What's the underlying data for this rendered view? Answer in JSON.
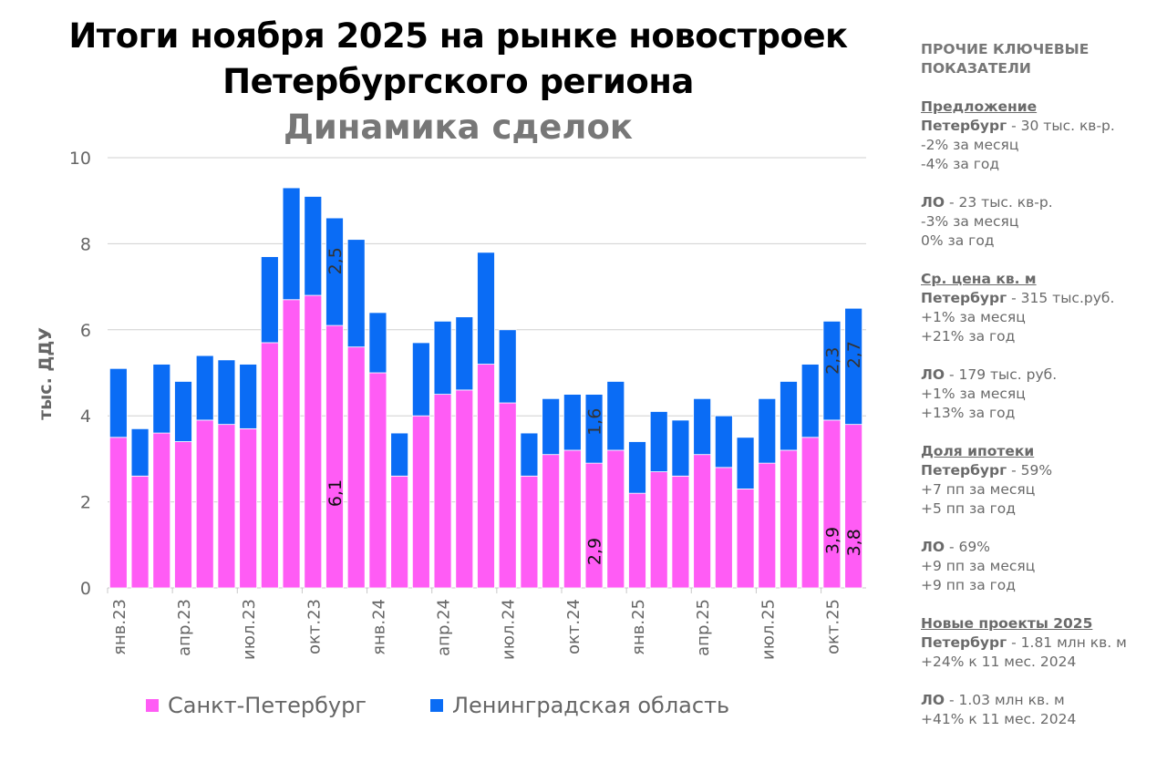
{
  "header": {
    "title_line1": "Итоги ноября 2025 на рынке новостроек",
    "title_line2": "Петербургского региона",
    "subtitle": "Динамика сделок"
  },
  "colors": {
    "spb": "#ff5cf5",
    "lo": "#0a6cf5",
    "grid": "#d0d0d0",
    "text": "#6a6a6a"
  },
  "chart_data": {
    "type": "bar",
    "stacked": true,
    "title": "Динамика сделок",
    "ylabel": "тыс. ДДУ",
    "ylim": [
      0,
      10
    ],
    "yticks": [
      0,
      2,
      4,
      6,
      8,
      10
    ],
    "grid": true,
    "legend_placement": "bottom",
    "categories": [
      "янв.23",
      "фев.23",
      "мар.23",
      "апр.23",
      "май.23",
      "июн.23",
      "июл.23",
      "авг.23",
      "сен.23",
      "окт.23",
      "ноя.23",
      "дек.23",
      "янв.24",
      "фев.24",
      "мар.24",
      "апр.24",
      "май.24",
      "июн.24",
      "июл.24",
      "авг.24",
      "сен.24",
      "окт.24",
      "ноя.24",
      "дек.24",
      "янв.25",
      "фев.25",
      "мар.25",
      "апр.25",
      "май.25",
      "июн.25",
      "июл.25",
      "авг.25",
      "сен.25",
      "окт.25",
      "ноя.25"
    ],
    "xtick_labels": [
      "янв.23",
      "апр.23",
      "июл.23",
      "окт.23",
      "янв.24",
      "апр.24",
      "июл.24",
      "окт.24",
      "янв.25",
      "апр.25",
      "июл.25",
      "окт.25"
    ],
    "xtick_indices": [
      0,
      3,
      6,
      9,
      12,
      15,
      18,
      21,
      24,
      27,
      30,
      33
    ],
    "series": [
      {
        "name": "Санкт-Петербург",
        "color": "#ff5cf5",
        "values": [
          3.5,
          2.6,
          3.6,
          3.4,
          3.9,
          3.8,
          3.7,
          5.7,
          6.7,
          6.8,
          6.1,
          5.6,
          5.0,
          2.6,
          4.0,
          4.5,
          4.6,
          5.2,
          4.3,
          2.6,
          3.1,
          3.2,
          2.9,
          3.2,
          2.2,
          2.7,
          2.6,
          3.1,
          2.8,
          2.3,
          2.9,
          3.2,
          3.5,
          3.9,
          3.8
        ],
        "labels": {
          "10": "6,1",
          "22": "2,9",
          "33": "3,9",
          "34": "3,8"
        }
      },
      {
        "name": "Ленинградская область",
        "color": "#0a6cf5",
        "values": [
          1.6,
          1.1,
          1.6,
          1.4,
          1.5,
          1.5,
          1.5,
          2.0,
          2.6,
          2.3,
          2.5,
          2.5,
          1.4,
          1.0,
          1.7,
          1.7,
          1.7,
          2.6,
          1.7,
          1.0,
          1.3,
          1.3,
          1.6,
          1.6,
          1.2,
          1.4,
          1.3,
          1.3,
          1.2,
          1.2,
          1.5,
          1.6,
          1.7,
          2.3,
          2.7
        ],
        "labels": {
          "10": "2,5",
          "22": "1,6",
          "33": "2,3",
          "34": "2,7"
        }
      }
    ]
  },
  "panel": {
    "heading": [
      "ПРОЧИЕ КЛЮЧЕВЫЕ",
      "ПОКАЗАТЕЛИ"
    ],
    "sections": [
      {
        "title": "Предложение",
        "blocks": [
          {
            "region": "Петербург",
            "value": " - 30 тыс. кв-р.",
            "lines": [
              "-2% за месяц",
              "-4% за год"
            ]
          },
          {
            "region": "ЛО",
            "value": " - 23 тыс. кв-р.",
            "lines": [
              "-3% за месяц",
              "0% за год"
            ]
          }
        ]
      },
      {
        "title": "Ср. цена кв. м",
        "blocks": [
          {
            "region": "Петербург",
            "value": " - 315 тыс.руб.",
            "lines": [
              "+1% за месяц",
              "+21% за год"
            ]
          },
          {
            "region": "ЛО",
            "value": " - 179 тыс. руб.",
            "lines": [
              "+1% за месяц",
              "+13% за год"
            ]
          }
        ]
      },
      {
        "title": "Доля ипотеки",
        "blocks": [
          {
            "region": "Петербург",
            "value": " - 59%",
            "lines": [
              "+7 пп за месяц",
              "+5 пп за год"
            ]
          },
          {
            "region": "ЛО",
            "value": " - 69%",
            "lines": [
              "+9 пп за месяц",
              "+9 пп за год"
            ]
          }
        ]
      },
      {
        "title": "Новые проекты 2025",
        "blocks": [
          {
            "region": "Петербург",
            "value": " - 1.81 млн кв. м",
            "lines": [
              "+24% к 11 мес. 2024"
            ]
          },
          {
            "region": "ЛО",
            "value": " - 1.03 млн кв. м",
            "lines": [
              "+41% к 11 мес. 2024"
            ]
          }
        ]
      }
    ]
  }
}
